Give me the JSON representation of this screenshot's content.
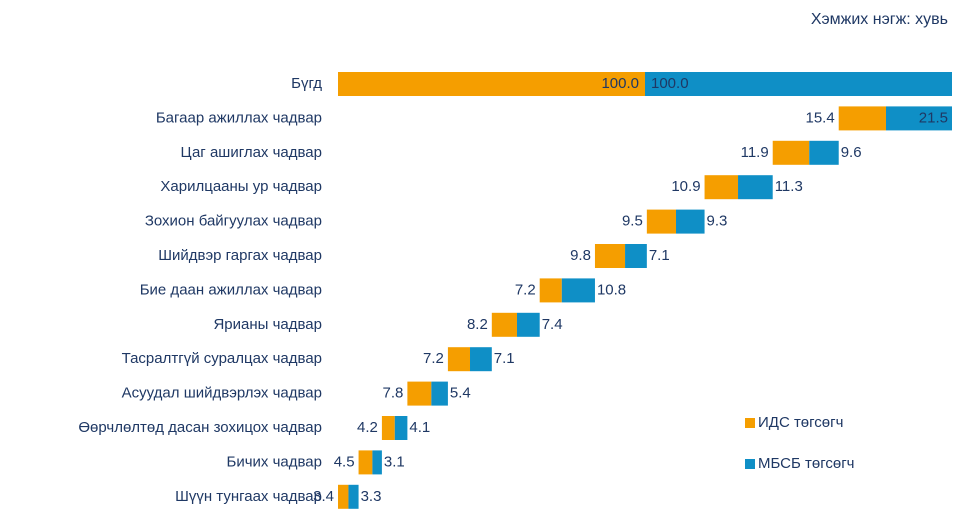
{
  "chart_data": {
    "type": "waterfall",
    "subtitle": "Хэмжих нэгж: хувь",
    "categories": [
      "Бүгд",
      "Багаар ажиллах чадвар",
      "Цаг ашиглах чадвар",
      "Харилцааны ур чадвар",
      "Зохион байгуулах чадвар",
      "Шийдвэр гаргах чадвар",
      "Бие даан ажиллах чадвар",
      "Ярианы чадвар",
      "Тасралтгүй суралцах чадвар",
      "Асуудал шийдвэрлэх чадвар",
      "Өөрчлөлтөд дасан зохицох чадвар",
      "Бичих чадвар",
      "Шүүн тунгаах чадвар"
    ],
    "series": [
      {
        "name": "ИДС төгсөгч",
        "color": "#f59e00",
        "values": [
          100,
          15.4,
          11.9,
          10.9,
          9.5,
          9.8,
          7.2,
          8.2,
          7.2,
          7.8,
          4.2,
          4.5,
          3.4
        ],
        "value_labels": [
          "100.0",
          "15.4",
          "11.9",
          "10.9",
          "9.5",
          "9.8",
          "7.2",
          "8.2",
          "7.2",
          "7.8",
          "4.2",
          "4.5",
          "3.4"
        ]
      },
      {
        "name": "МБСБ төгсөгч",
        "color": "#0f8fc6",
        "values": [
          100,
          21.5,
          9.6,
          11.3,
          9.3,
          7.1,
          10.8,
          7.4,
          7.1,
          5.4,
          4.1,
          3.1,
          3.3
        ],
        "value_labels": [
          "100.0",
          "21.5",
          "9.6",
          "11.3",
          "9.3",
          "7.1",
          "10.8",
          "7.4",
          "7.1",
          "5.4",
          "4.1",
          "3.1",
          "3.3"
        ]
      }
    ],
    "legend": "lower right"
  }
}
